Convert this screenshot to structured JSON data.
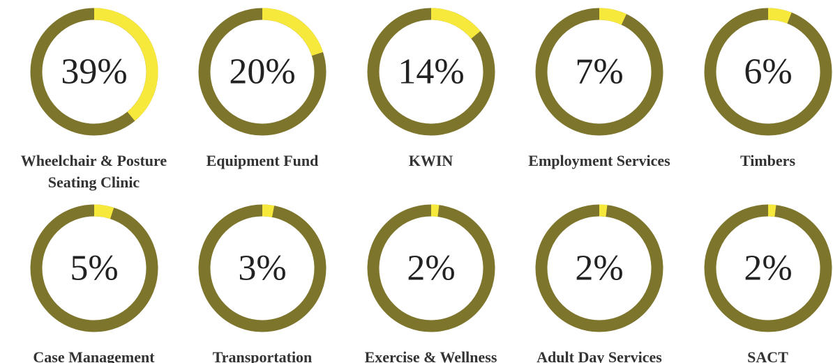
{
  "chart_data": [
    {
      "type": "donut",
      "label": "Wheelchair & Posture Seating Clinic",
      "value": 39,
      "value_label": "39%",
      "color": "#f7e93b",
      "track_color": "#7e752d"
    },
    {
      "type": "donut",
      "label": "Equipment Fund",
      "value": 20,
      "value_label": "20%",
      "color": "#f7e93b",
      "track_color": "#7e752d"
    },
    {
      "type": "donut",
      "label": "KWIN",
      "value": 14,
      "value_label": "14%",
      "color": "#f7e93b",
      "track_color": "#7e752d"
    },
    {
      "type": "donut",
      "label": "Employment Services",
      "value": 7,
      "value_label": "7%",
      "color": "#f7e93b",
      "track_color": "#7e752d"
    },
    {
      "type": "donut",
      "label": "Timbers",
      "value": 6,
      "value_label": "6%",
      "color": "#f7e93b",
      "track_color": "#7e752d"
    },
    {
      "type": "donut",
      "label": "Case Management",
      "value": 5,
      "value_label": "5%",
      "color": "#f7e93b",
      "track_color": "#7e752d"
    },
    {
      "type": "donut",
      "label": "Transportation",
      "value": 3,
      "value_label": "3%",
      "color": "#f7e93b",
      "track_color": "#7e752d"
    },
    {
      "type": "donut",
      "label": "Exercise & Wellness",
      "value": 2,
      "value_label": "2%",
      "color": "#f7e93b",
      "track_color": "#7e752d"
    },
    {
      "type": "donut",
      "label": "Adult Day Services",
      "value": 2,
      "value_label": "2%",
      "color": "#f7e93b",
      "track_color": "#7e752d"
    },
    {
      "type": "donut",
      "label": "SACT",
      "value": 2,
      "value_label": "2%",
      "color": "#f7e93b",
      "track_color": "#7e752d"
    }
  ]
}
